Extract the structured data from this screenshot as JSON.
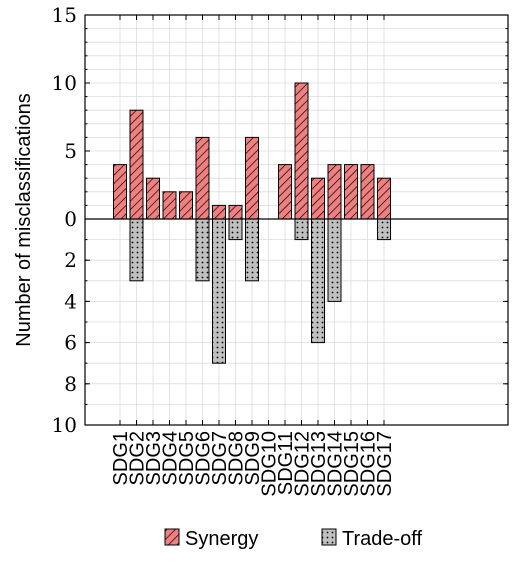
{
  "chart_data": {
    "type": "bar",
    "categories": [
      "SDG1",
      "SDG2",
      "SDG3",
      "SDG4",
      "SDG5",
      "SDG6",
      "SDG7",
      "SDG8",
      "SDG9",
      "SDG10",
      "SDG11",
      "SDG12",
      "SDG13",
      "SDG14",
      "SDG15",
      "SDG16",
      "SDG17"
    ],
    "ylabel": "Number of misclassifications",
    "upper_axis": {
      "ylim": [
        0,
        15
      ],
      "ticks": [
        0,
        5,
        10,
        15
      ],
      "tick_labels": [
        "0",
        "5",
        "10",
        "15"
      ]
    },
    "lower_axis": {
      "ylim": [
        0,
        10
      ],
      "ticks": [
        2,
        4,
        6,
        8,
        10
      ],
      "tick_labels": [
        "2",
        "4",
        "6",
        "8",
        "10"
      ]
    },
    "series": [
      {
        "name": "Synergy",
        "direction": "up",
        "color": "#f08080",
        "pattern": "diagonal-hatch",
        "values": [
          4,
          8,
          3,
          2,
          2,
          6,
          1,
          1,
          6,
          0,
          4,
          10,
          3,
          4,
          4,
          4,
          3
        ]
      },
      {
        "name": "Trade-off",
        "direction": "down",
        "color": "#c0c0c0",
        "pattern": "dots",
        "values": [
          0,
          3,
          0,
          0,
          0,
          3,
          7,
          1,
          3,
          0,
          0,
          1,
          6,
          4,
          0,
          0,
          1
        ]
      }
    ],
    "grid": true,
    "legend": "bottom"
  }
}
